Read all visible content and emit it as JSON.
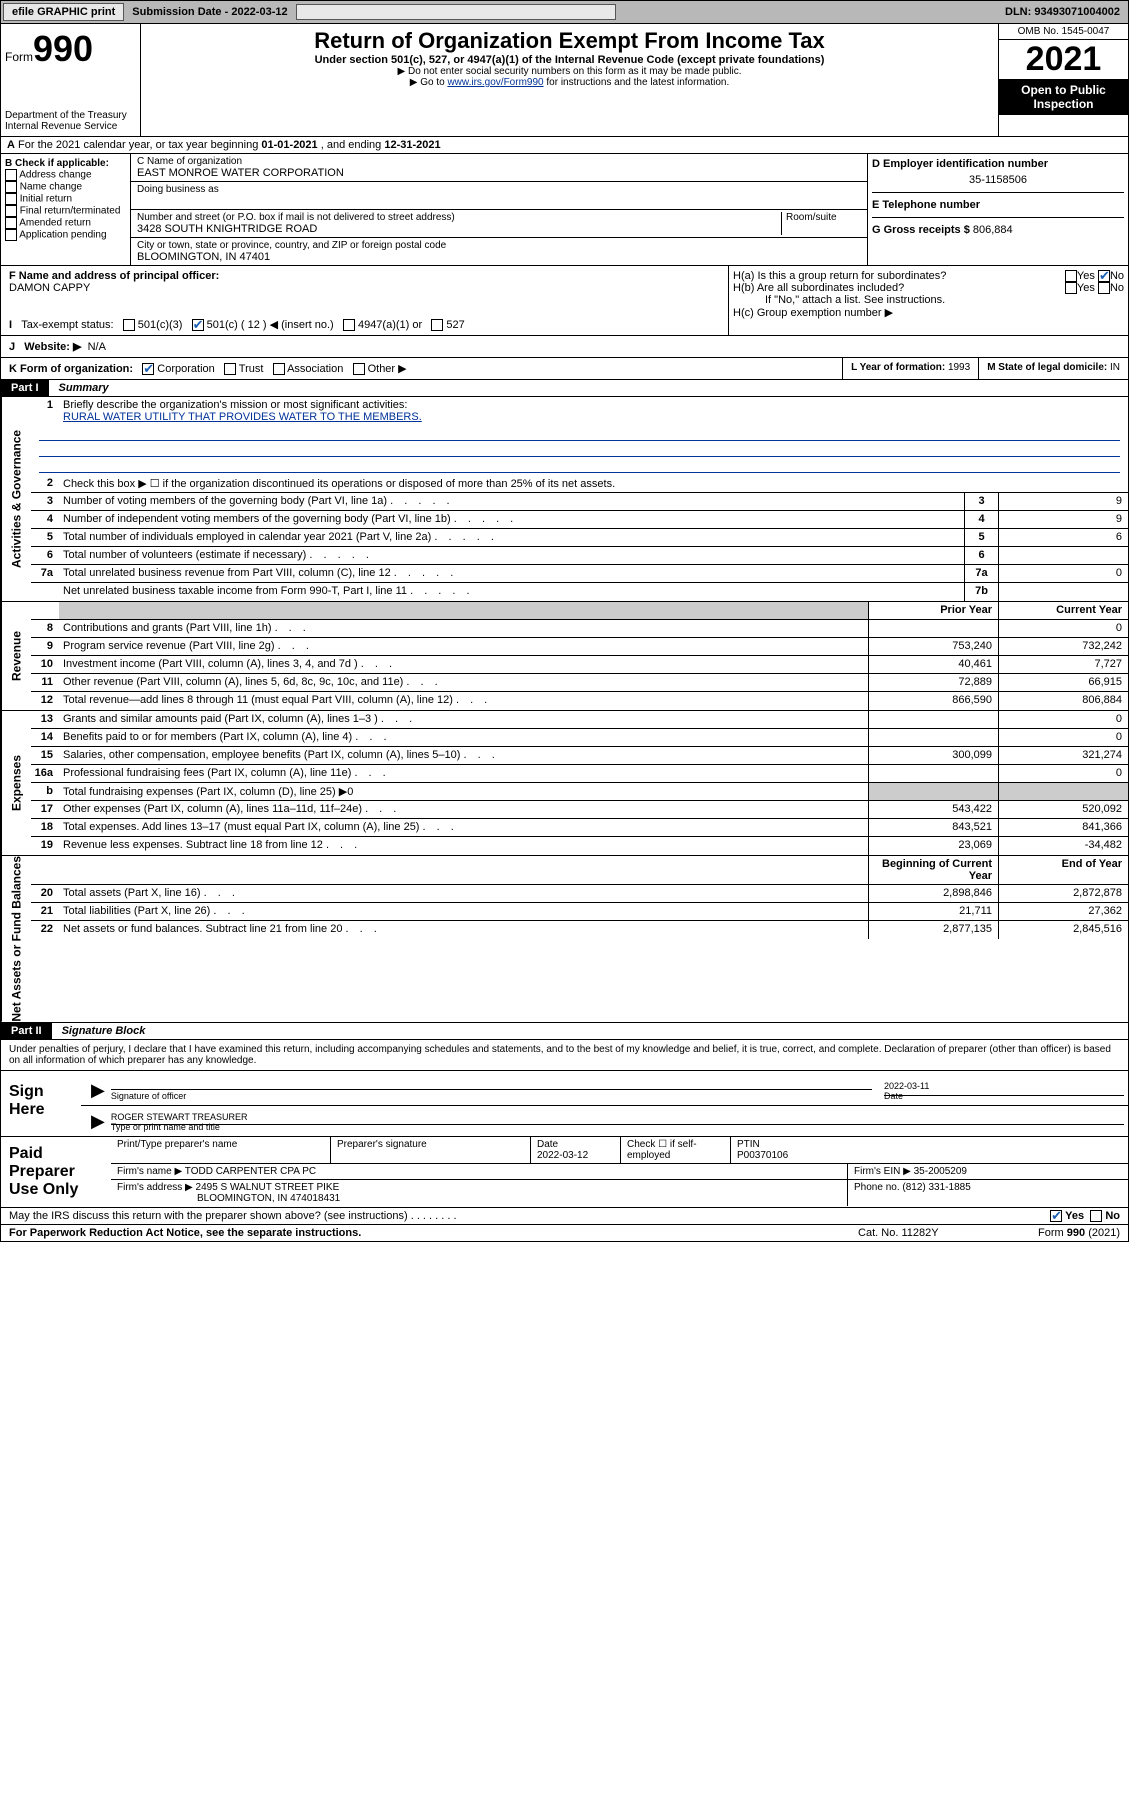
{
  "topbar": {
    "efile": "efile GRAPHIC print",
    "subdate_label": "Submission Date - ",
    "subdate": "2022-03-12",
    "dln_label": "DLN: ",
    "dln": "93493071004002"
  },
  "header": {
    "form_label": "Form",
    "form_num": "990",
    "dept": "Department of the Treasury\nInternal Revenue Service",
    "title": "Return of Organization Exempt From Income Tax",
    "sub1": "Under section 501(c), 527, or 4947(a)(1) of the Internal Revenue Code (except private foundations)",
    "sub2": "▶ Do not enter social security numbers on this form as it may be made public.",
    "sub3_pre": "▶ Go to ",
    "sub3_link": "www.irs.gov/Form990",
    "sub3_post": " for instructions and the latest information.",
    "omb": "OMB No. 1545-0047",
    "year": "2021",
    "open": "Open to Public Inspection"
  },
  "rowA": {
    "text_pre": "For the 2021 calendar year, or tax year beginning ",
    "begin": "01-01-2021",
    "mid": " , and ending ",
    "end": "12-31-2021"
  },
  "boxB": {
    "label": "B Check if applicable:",
    "items": [
      "Address change",
      "Name change",
      "Initial return",
      "Final return/terminated",
      "Amended return",
      "Application pending"
    ]
  },
  "boxC": {
    "name_label": "C Name of organization",
    "name": "EAST MONROE WATER CORPORATION",
    "dba_label": "Doing business as",
    "dba": "",
    "addr_label": "Number and street (or P.O. box if mail is not delivered to street address)",
    "room_label": "Room/suite",
    "addr": "3428 SOUTH KNIGHTRIDGE ROAD",
    "city_label": "City or town, state or province, country, and ZIP or foreign postal code",
    "city": "BLOOMINGTON, IN  47401"
  },
  "boxD": {
    "label": "D Employer identification number",
    "val": "35-1158506"
  },
  "boxE": {
    "label": "E Telephone number",
    "val": ""
  },
  "boxG": {
    "label": "G Gross receipts $ ",
    "val": "806,884"
  },
  "boxF": {
    "label": "F Name and address of principal officer:",
    "name": "DAMON CAPPY"
  },
  "boxH": {
    "a": "H(a)  Is this a group return for subordinates?",
    "b": "H(b)  Are all subordinates included?",
    "bnote": "If \"No,\" attach a list. See instructions.",
    "c": "H(c)  Group exemption number ▶",
    "yes": "Yes",
    "no": "No"
  },
  "rowI": {
    "label": "Tax-exempt status:",
    "opts": [
      "501(c)(3)",
      "501(c) ( 12 ) ◀ (insert no.)",
      "4947(a)(1) or",
      "527"
    ]
  },
  "rowJ": {
    "label": "Website: ▶",
    "val": "N/A"
  },
  "rowK": {
    "label": "K Form of organization:",
    "opts": [
      "Corporation",
      "Trust",
      "Association",
      "Other ▶"
    ],
    "L": "L Year of formation: ",
    "Lval": "1993",
    "M": "M State of legal domicile: ",
    "Mval": "IN"
  },
  "part1": {
    "num": "Part I",
    "title": "Summary"
  },
  "summary": {
    "groups": [
      {
        "vlabel": "Activities & Governance",
        "lines": [
          {
            "num": "1",
            "txt": "Briefly describe the organization's mission or most significant activities:",
            "mission": "RURAL WATER UTILITY THAT PROVIDES WATER TO THE MEMBERS.",
            "type": "mission"
          },
          {
            "num": "2",
            "txt": "Check this box ▶ ☐  if the organization discontinued its operations or disposed of more than 25% of its net assets.",
            "type": "plain"
          },
          {
            "num": "3",
            "txt": "Number of voting members of the governing body (Part VI, line 1a)",
            "rn": "3",
            "rv": "9",
            "type": "numcell"
          },
          {
            "num": "4",
            "txt": "Number of independent voting members of the governing body (Part VI, line 1b)",
            "rn": "4",
            "rv": "9",
            "type": "numcell"
          },
          {
            "num": "5",
            "txt": "Total number of individuals employed in calendar year 2021 (Part V, line 2a)",
            "rn": "5",
            "rv": "6",
            "type": "numcell"
          },
          {
            "num": "6",
            "txt": "Total number of volunteers (estimate if necessary)",
            "rn": "6",
            "rv": "",
            "type": "numcell"
          },
          {
            "num": "7a",
            "txt": "Total unrelated business revenue from Part VIII, column (C), line 12",
            "rn": "7a",
            "rv": "0",
            "type": "numcell"
          },
          {
            "num": "",
            "txt": "Net unrelated business taxable income from Form 990-T, Part I, line 11",
            "rn": "7b",
            "rv": "",
            "type": "numcell"
          }
        ]
      },
      {
        "vlabel": "Revenue",
        "header": {
          "c1": "Prior Year",
          "c2": "Current Year"
        },
        "lines": [
          {
            "num": "8",
            "txt": "Contributions and grants (Part VIII, line 1h)",
            "c1": "",
            "c2": "0",
            "type": "twocol"
          },
          {
            "num": "9",
            "txt": "Program service revenue (Part VIII, line 2g)",
            "c1": "753,240",
            "c2": "732,242",
            "type": "twocol"
          },
          {
            "num": "10",
            "txt": "Investment income (Part VIII, column (A), lines 3, 4, and 7d )",
            "c1": "40,461",
            "c2": "7,727",
            "type": "twocol"
          },
          {
            "num": "11",
            "txt": "Other revenue (Part VIII, column (A), lines 5, 6d, 8c, 9c, 10c, and 11e)",
            "c1": "72,889",
            "c2": "66,915",
            "type": "twocol"
          },
          {
            "num": "12",
            "txt": "Total revenue—add lines 8 through 11 (must equal Part VIII, column (A), line 12)",
            "c1": "866,590",
            "c2": "806,884",
            "type": "twocol"
          }
        ]
      },
      {
        "vlabel": "Expenses",
        "lines": [
          {
            "num": "13",
            "txt": "Grants and similar amounts paid (Part IX, column (A), lines 1–3 )",
            "c1": "",
            "c2": "0",
            "type": "twocol"
          },
          {
            "num": "14",
            "txt": "Benefits paid to or for members (Part IX, column (A), line 4)",
            "c1": "",
            "c2": "0",
            "type": "twocol"
          },
          {
            "num": "15",
            "txt": "Salaries, other compensation, employee benefits (Part IX, column (A), lines 5–10)",
            "c1": "300,099",
            "c2": "321,274",
            "type": "twocol"
          },
          {
            "num": "16a",
            "txt": "Professional fundraising fees (Part IX, column (A), line 11e)",
            "c1": "",
            "c2": "0",
            "type": "twocol"
          },
          {
            "num": "b",
            "txt": "Total fundraising expenses (Part IX, column (D), line 25) ▶0",
            "type": "plain-gray"
          },
          {
            "num": "17",
            "txt": "Other expenses (Part IX, column (A), lines 11a–11d, 11f–24e)",
            "c1": "543,422",
            "c2": "520,092",
            "type": "twocol"
          },
          {
            "num": "18",
            "txt": "Total expenses. Add lines 13–17 (must equal Part IX, column (A), line 25)",
            "c1": "843,521",
            "c2": "841,366",
            "type": "twocol"
          },
          {
            "num": "19",
            "txt": "Revenue less expenses. Subtract line 18 from line 12",
            "c1": "23,069",
            "c2": "-34,482",
            "type": "twocol"
          }
        ]
      },
      {
        "vlabel": "Net Assets or Fund Balances",
        "header": {
          "c1": "Beginning of Current Year",
          "c2": "End of Year"
        },
        "lines": [
          {
            "num": "20",
            "txt": "Total assets (Part X, line 16)",
            "c1": "2,898,846",
            "c2": "2,872,878",
            "type": "twocol"
          },
          {
            "num": "21",
            "txt": "Total liabilities (Part X, line 26)",
            "c1": "21,711",
            "c2": "27,362",
            "type": "twocol"
          },
          {
            "num": "22",
            "txt": "Net assets or fund balances. Subtract line 21 from line 20",
            "c1": "2,877,135",
            "c2": "2,845,516",
            "type": "twocol"
          }
        ]
      }
    ]
  },
  "part2": {
    "num": "Part II",
    "title": "Signature Block"
  },
  "sigintro": "Under penalties of perjury, I declare that I have examined this return, including accompanying schedules and statements, and to the best of my knowledge and belief, it is true, correct, and complete. Declaration of preparer (other than officer) is based on all information of which preparer has any knowledge.",
  "sign": {
    "here": "Sign Here",
    "sigof": "Signature of officer",
    "date": "Date",
    "dateval": "2022-03-11",
    "name": "ROGER STEWART TREASURER",
    "nametype": "Type or print name and title"
  },
  "prep": {
    "label": "Paid Preparer Use Only",
    "r1": {
      "a": "Print/Type preparer's name",
      "b": "Preparer's signature",
      "c": "Date",
      "cval": "2022-03-12",
      "d": "Check ☐ if self-employed",
      "e": "PTIN",
      "eval": "P00370106"
    },
    "r2": {
      "a": "Firm's name   ▶ ",
      "aval": "TODD CARPENTER CPA PC",
      "b": "Firm's EIN ▶ ",
      "bval": "35-2005209"
    },
    "r3": {
      "a": "Firm's address ▶ ",
      "aval": "2495 S WALNUT STREET PIKE",
      "aval2": "BLOOMINGTON, IN  474018431",
      "b": "Phone no. ",
      "bval": "(812) 331-1885"
    }
  },
  "discuss": {
    "txt": "May the IRS discuss this return with the preparer shown above? (see instructions)",
    "yes": "Yes",
    "no": "No"
  },
  "footer": {
    "pra": "For Paperwork Reduction Act Notice, see the separate instructions.",
    "cat": "Cat. No. 11282Y",
    "form": "Form 990 (2021)"
  }
}
